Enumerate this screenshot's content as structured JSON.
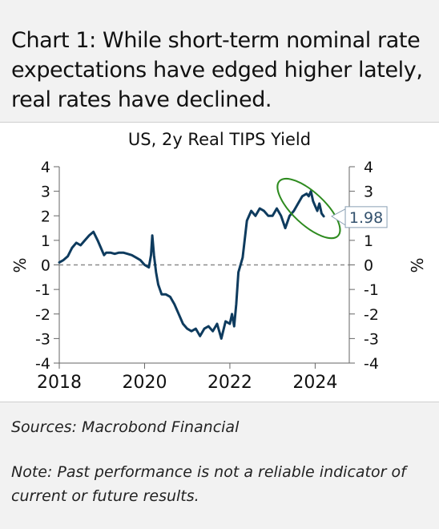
{
  "header": {
    "title": "Chart 1: While short-term nominal rate expectations have edged higher lately, real rates have declined."
  },
  "footer": {
    "sources": "Sources: Macrobond Financial",
    "note": "Note: Past performance is not a reliable indicator of current or future results."
  },
  "colors": {
    "series": "#0e3b5e",
    "highlight": "#2e8b1f",
    "zero_line": "#8c8c8c",
    "label_text": "#34526e"
  },
  "chart_data": {
    "type": "line",
    "title": "US, 2y Real TIPS Yield",
    "ylabel": "%",
    "ylabel_right": "%",
    "ylim": [
      -4,
      4
    ],
    "y_ticks": [
      4,
      3,
      2,
      1,
      0,
      -1,
      -2,
      -3,
      -4
    ],
    "y_tick_labels": [
      "4",
      "3",
      "2",
      "1",
      "0",
      "-1",
      "-2",
      "-3",
      "-4"
    ],
    "xlim": [
      2018.0,
      2024.8
    ],
    "x_ticks": [
      2018,
      2020,
      2022,
      2024
    ],
    "x_tick_labels": [
      "2018",
      "2020",
      "2022",
      "2024"
    ],
    "zero_line": true,
    "grid": false,
    "last_value_label": "1.98",
    "highlight": "ellipse around 2023-2024 peak",
    "series": [
      {
        "values_x": [
          2018.0,
          2018.1,
          2018.2,
          2018.3,
          2018.4,
          2018.5,
          2018.6,
          2018.7,
          2018.8,
          2018.9,
          2019.0,
          2019.05,
          2019.1,
          2019.2,
          2019.3,
          2019.4,
          2019.5,
          2019.6,
          2019.7,
          2019.8,
          2019.9,
          2020.0,
          2020.1,
          2020.15,
          2020.18,
          2020.22,
          2020.27,
          2020.32,
          2020.4,
          2020.5,
          2020.6,
          2020.7,
          2020.8,
          2020.9,
          2021.0,
          2021.1,
          2021.2,
          2021.3,
          2021.4,
          2021.5,
          2021.6,
          2021.7,
          2021.8,
          2021.9,
          2022.0,
          2022.05,
          2022.1,
          2022.15,
          2022.2,
          2022.3,
          2022.4,
          2022.5,
          2022.6,
          2022.7,
          2022.8,
          2022.9,
          2023.0,
          2023.1,
          2023.2,
          2023.3,
          2023.4,
          2023.5,
          2023.6,
          2023.7,
          2023.8,
          2023.85,
          2023.9,
          2023.95,
          2024.0,
          2024.05,
          2024.1,
          2024.15,
          2024.2
        ],
        "values_y": [
          0.1,
          0.2,
          0.35,
          0.7,
          0.9,
          0.8,
          1.0,
          1.2,
          1.35,
          1.0,
          0.6,
          0.4,
          0.5,
          0.5,
          0.45,
          0.5,
          0.5,
          0.45,
          0.4,
          0.3,
          0.2,
          0.0,
          -0.1,
          0.4,
          1.2,
          0.4,
          -0.3,
          -0.8,
          -1.2,
          -1.2,
          -1.3,
          -1.6,
          -2.0,
          -2.4,
          -2.6,
          -2.7,
          -2.6,
          -2.9,
          -2.6,
          -2.5,
          -2.7,
          -2.4,
          -3.0,
          -2.3,
          -2.4,
          -2.0,
          -2.5,
          -1.6,
          -0.3,
          0.3,
          1.8,
          2.2,
          2.0,
          2.3,
          2.2,
          2.0,
          2.0,
          2.3,
          2.0,
          1.5,
          2.0,
          2.2,
          2.5,
          2.8,
          2.9,
          2.8,
          3.0,
          2.6,
          2.4,
          2.2,
          2.5,
          2.1,
          1.98
        ]
      }
    ]
  }
}
